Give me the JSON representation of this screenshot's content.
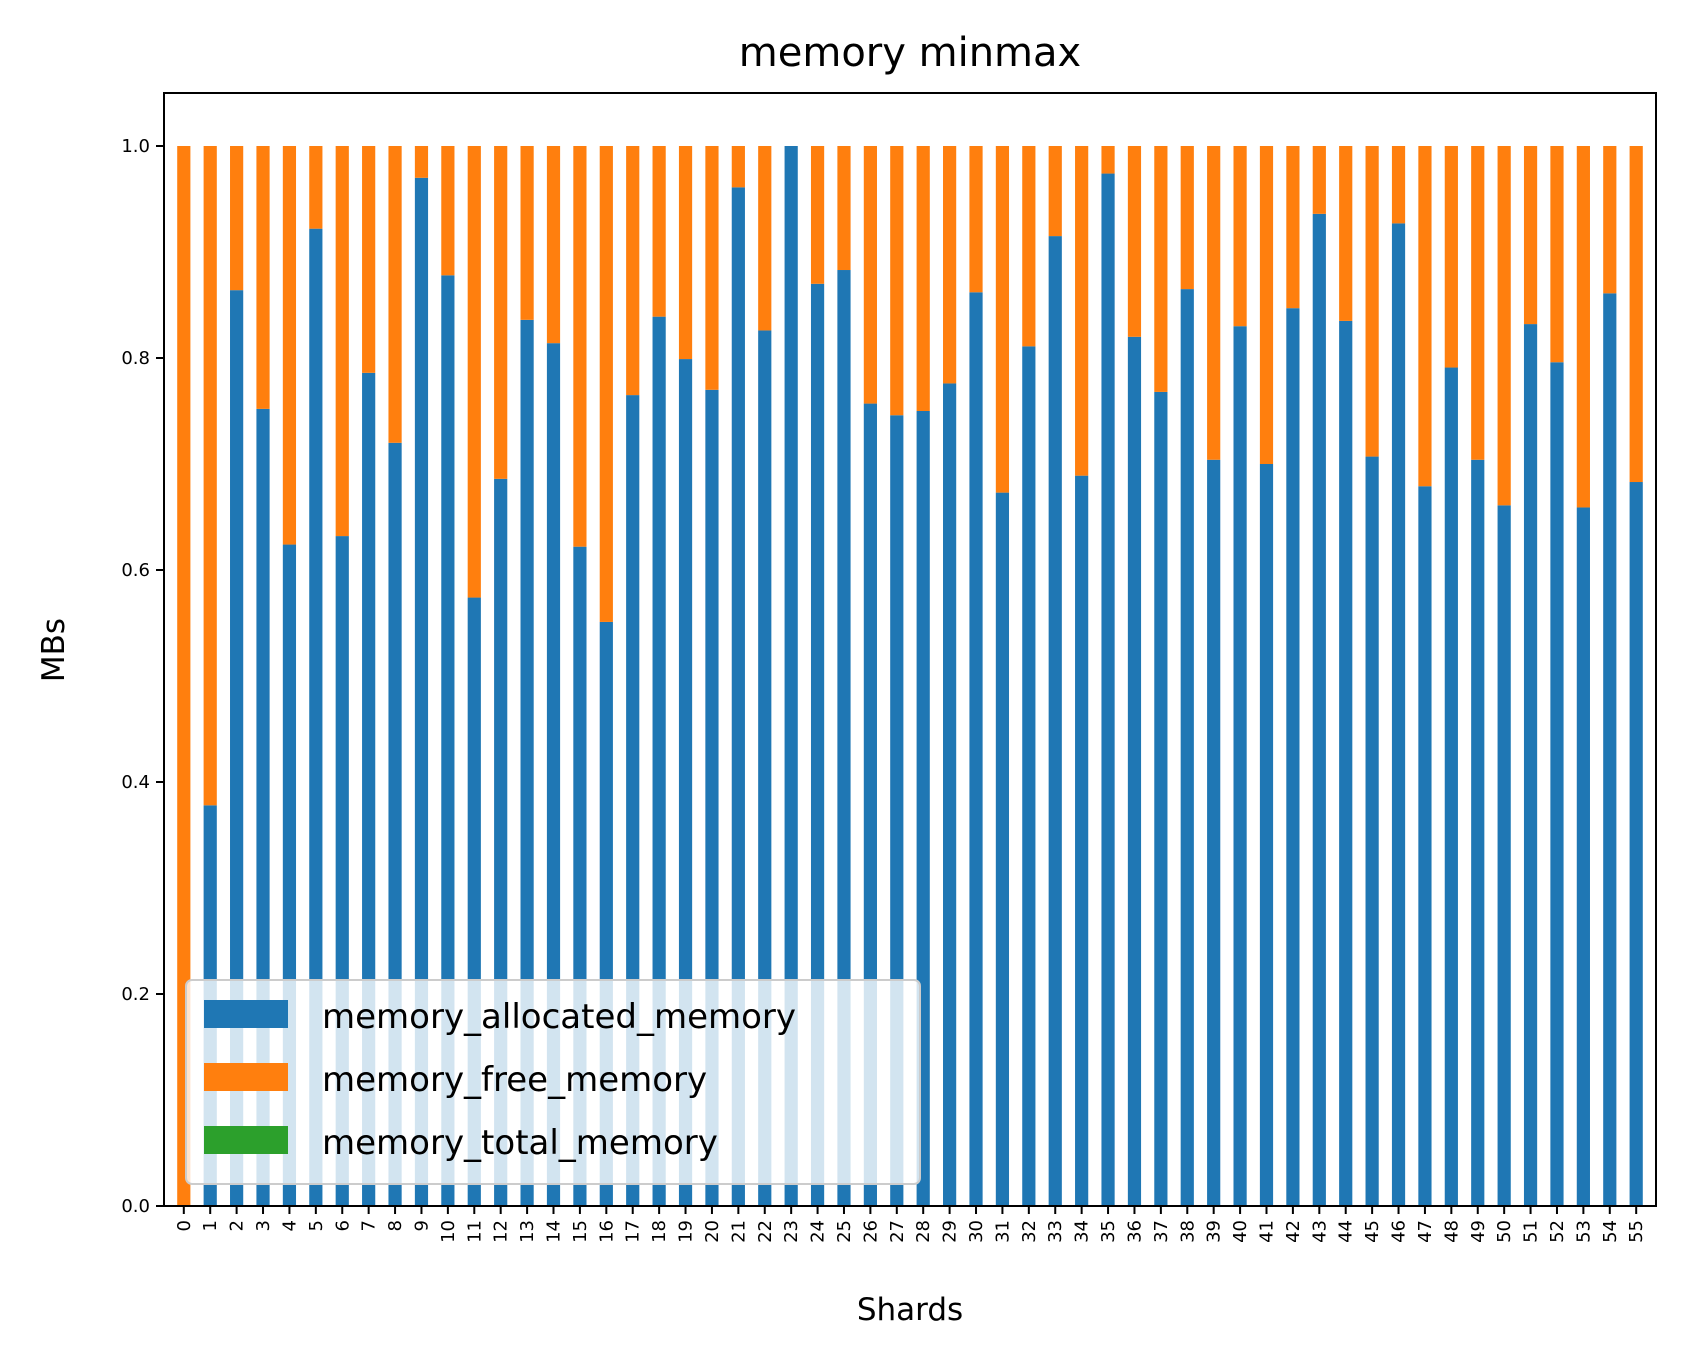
{
  "chart_data": {
    "type": "bar",
    "stacked": true,
    "title": "memory minmax",
    "xlabel": "Shards",
    "ylabel": "MBs",
    "ylim": [
      0,
      1.05
    ],
    "yticks": [
      0.0,
      0.2,
      0.4,
      0.6,
      0.8,
      1.0
    ],
    "ytick_labels": [
      "0.0",
      "0.2",
      "0.4",
      "0.6",
      "0.8",
      "1.0"
    ],
    "grid": false,
    "legend_position": "lower-left",
    "categories": [
      "0",
      "1",
      "2",
      "3",
      "4",
      "5",
      "6",
      "7",
      "8",
      "9",
      "10",
      "11",
      "12",
      "13",
      "14",
      "15",
      "16",
      "17",
      "18",
      "19",
      "20",
      "21",
      "22",
      "23",
      "24",
      "25",
      "26",
      "27",
      "28",
      "29",
      "30",
      "31",
      "32",
      "33",
      "34",
      "35",
      "36",
      "37",
      "38",
      "39",
      "40",
      "41",
      "42",
      "43",
      "44",
      "45",
      "46",
      "47",
      "48",
      "49",
      "50",
      "51",
      "52",
      "53",
      "54",
      "55"
    ],
    "series": [
      {
        "name": "memory_allocated_memory",
        "color": "#1f77b4",
        "values": [
          0.0,
          0.378,
          0.864,
          0.752,
          0.624,
          0.922,
          0.632,
          0.786,
          0.72,
          0.97,
          0.878,
          0.574,
          0.686,
          0.836,
          0.814,
          0.622,
          0.551,
          0.765,
          0.839,
          0.799,
          0.77,
          0.961,
          0.826,
          1.0,
          0.87,
          0.883,
          0.757,
          0.746,
          0.75,
          0.776,
          0.862,
          0.673,
          0.811,
          0.915,
          0.689,
          0.974,
          0.82,
          0.768,
          0.865,
          0.704,
          0.83,
          0.7,
          0.847,
          0.936,
          0.835,
          0.707,
          0.927,
          0.679,
          0.791,
          0.704,
          0.661,
          0.832,
          0.796,
          0.659,
          0.861,
          0.683
        ]
      },
      {
        "name": "memory_free_memory",
        "color": "#ff7f0e",
        "values": [
          1.0,
          0.622,
          0.136,
          0.248,
          0.376,
          0.078,
          0.368,
          0.214,
          0.28,
          0.03,
          0.122,
          0.426,
          0.314,
          0.164,
          0.186,
          0.378,
          0.449,
          0.235,
          0.161,
          0.201,
          0.23,
          0.039,
          0.174,
          0.0,
          0.13,
          0.117,
          0.243,
          0.254,
          0.25,
          0.224,
          0.138,
          0.327,
          0.189,
          0.085,
          0.311,
          0.026,
          0.18,
          0.232,
          0.135,
          0.296,
          0.17,
          0.3,
          0.153,
          0.064,
          0.165,
          0.293,
          0.073,
          0.321,
          0.209,
          0.296,
          0.339,
          0.168,
          0.204,
          0.341,
          0.139,
          0.317
        ]
      },
      {
        "name": "memory_total_memory",
        "color": "#2ca02c",
        "values": [
          0,
          0,
          0,
          0,
          0,
          0,
          0,
          0,
          0,
          0,
          0,
          0,
          0,
          0,
          0,
          0,
          0,
          0,
          0,
          0,
          0,
          0,
          0,
          0,
          0,
          0,
          0,
          0,
          0,
          0,
          0,
          0,
          0,
          0,
          0,
          0,
          0,
          0,
          0,
          0,
          0,
          0,
          0,
          0,
          0,
          0,
          0,
          0,
          0,
          0,
          0,
          0,
          0,
          0,
          0,
          0
        ]
      }
    ]
  }
}
